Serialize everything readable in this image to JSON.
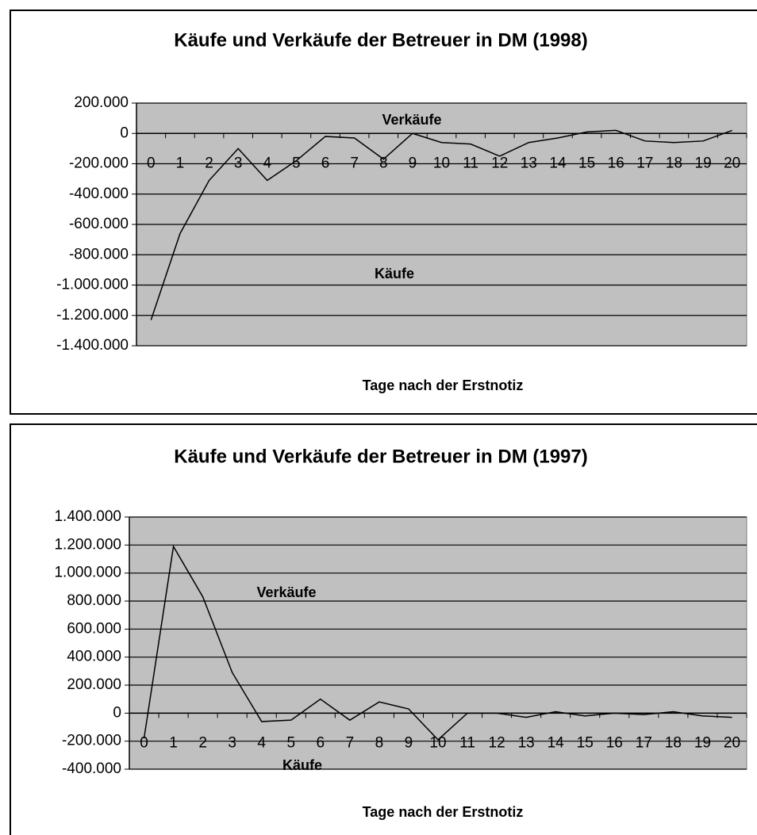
{
  "chart_data": [
    {
      "type": "line",
      "title": "Käufe und Verkäufe der Betreuer in DM  (1998)",
      "x_label": "Tage nach der Erstnotiz",
      "annotations": [
        "Verkäufe",
        "Käufe"
      ],
      "categories": [
        0,
        1,
        2,
        3,
        4,
        5,
        6,
        7,
        8,
        9,
        10,
        11,
        12,
        13,
        14,
        15,
        16,
        17,
        18,
        19,
        20
      ],
      "values": [
        -1230000,
        -660000,
        -310000,
        -100000,
        -310000,
        -180000,
        -20000,
        -30000,
        -170000,
        0,
        -60000,
        -70000,
        -150000,
        -60000,
        -30000,
        10000,
        20000,
        -50000,
        -60000,
        -50000,
        20000
      ],
      "color": "#000000",
      "ylim": [
        -1400000,
        200000
      ],
      "yticks": [
        {
          "value": -1400000,
          "label": "-1.400.000"
        },
        {
          "value": -1200000,
          "label": "-1.200.000"
        },
        {
          "value": -1000000,
          "label": "-1.000.000"
        },
        {
          "value": -800000,
          "label": "-800.000"
        },
        {
          "value": -600000,
          "label": "-600.000"
        },
        {
          "value": -400000,
          "label": "-400.000"
        },
        {
          "value": -200000,
          "label": "-200.000"
        },
        0,
        {
          "value": 200000,
          "label": "200.000"
        }
      ],
      "grid": true
    },
    {
      "type": "line",
      "title": "Käufe und Verkäufe der Betreuer in DM (1997)",
      "x_label": "Tage nach der Erstnotiz",
      "annotations": [
        "Verkäufe",
        "Käufe"
      ],
      "categories": [
        0,
        1,
        2,
        3,
        4,
        5,
        6,
        7,
        8,
        9,
        10,
        11,
        12,
        13,
        14,
        15,
        16,
        17,
        18,
        19,
        20
      ],
      "values": [
        -180000,
        1190000,
        830000,
        290000,
        -60000,
        -50000,
        100000,
        -50000,
        80000,
        30000,
        -190000,
        0,
        0,
        -30000,
        10000,
        -20000,
        0,
        -10000,
        10000,
        -20000,
        -30000
      ],
      "color": "#000000",
      "ylim": [
        -400000,
        1400000
      ],
      "yticks": [
        {
          "value": -400000,
          "label": "-400.000"
        },
        {
          "value": -200000,
          "label": "-200.000"
        },
        0,
        {
          "value": 200000,
          "label": "200.000"
        },
        {
          "value": 400000,
          "label": "400.000"
        },
        {
          "value": 600000,
          "label": "600.000"
        },
        {
          "value": 800000,
          "label": "800.000"
        },
        {
          "value": 1000000,
          "label": "1.000.000"
        },
        {
          "value": 1200000,
          "label": "1.200.000"
        },
        {
          "value": 1400000,
          "label": "1.400.000"
        }
      ],
      "grid": true
    }
  ]
}
